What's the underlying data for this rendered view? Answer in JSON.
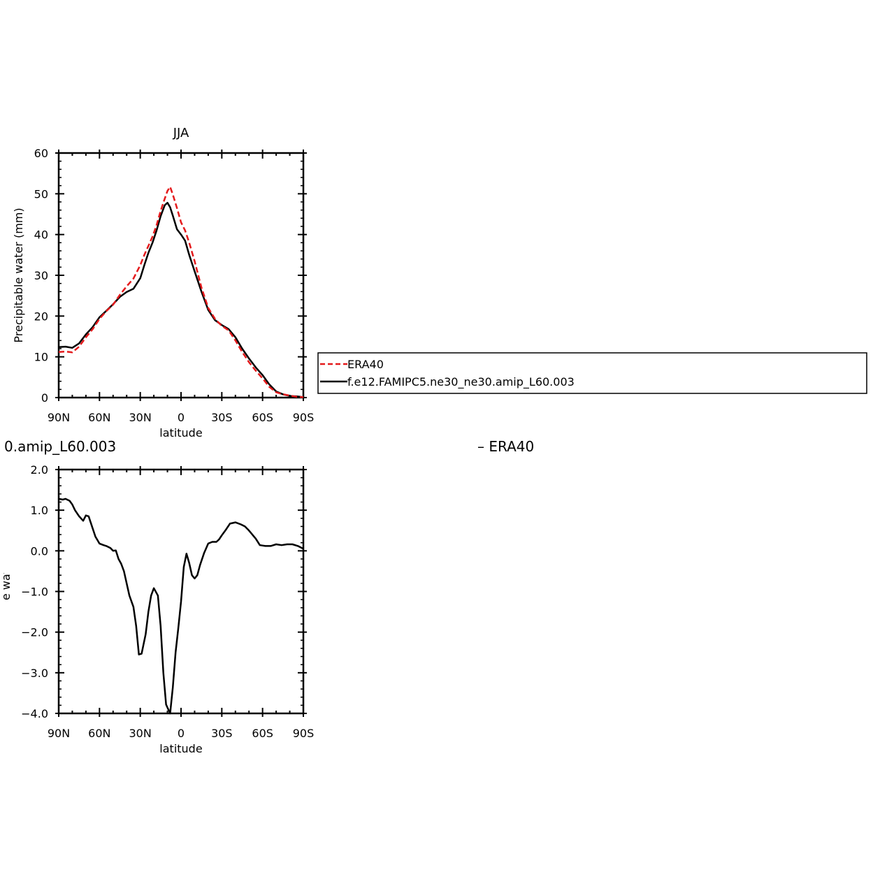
{
  "chart_data": [
    {
      "type": "line",
      "title": "JJA",
      "xlabel": "latitude",
      "ylabel": "Precipitable water (mm)",
      "xlim": [
        90,
        -90
      ],
      "ylim": [
        0,
        60
      ],
      "x_ticks": [
        {
          "value": 90,
          "label": "90N"
        },
        {
          "value": 60,
          "label": "60N"
        },
        {
          "value": 30,
          "label": "30N"
        },
        {
          "value": 0,
          "label": "0"
        },
        {
          "value": -30,
          "label": "30S"
        },
        {
          "value": -60,
          "label": "60S"
        },
        {
          "value": -90,
          "label": "90S"
        }
      ],
      "y_ticks": [
        {
          "value": 0,
          "label": "0"
        },
        {
          "value": 10,
          "label": "10"
        },
        {
          "value": 20,
          "label": "20"
        },
        {
          "value": 30,
          "label": "30"
        },
        {
          "value": 40,
          "label": "40"
        },
        {
          "value": 50,
          "label": "50"
        },
        {
          "value": 60,
          "label": "60"
        }
      ],
      "legend": "right",
      "series": [
        {
          "name": "ERA40",
          "color": "#e41a1c",
          "dash": "dashed",
          "x": [
            90,
            85,
            80,
            75,
            70,
            65,
            60,
            55,
            50,
            45,
            40,
            35,
            30,
            27,
            24,
            21,
            18,
            15,
            12,
            10,
            8,
            6,
            3,
            0,
            -3,
            -6,
            -10,
            -15,
            -20,
            -25,
            -30,
            -35,
            -40,
            -45,
            -50,
            -55,
            -60,
            -65,
            -70,
            -75,
            -80,
            -85,
            -90
          ],
          "y": [
            11.2,
            11.3,
            11.1,
            12.5,
            14.8,
            16.8,
            19.3,
            21.2,
            22.8,
            25.2,
            27.3,
            29.2,
            32.5,
            35.0,
            37.2,
            39.5,
            42.3,
            45.8,
            48.8,
            50.7,
            51.7,
            49.8,
            46.5,
            43.0,
            41.0,
            38.0,
            33.5,
            27.0,
            22.0,
            19.3,
            17.6,
            16.5,
            14.0,
            11.2,
            8.7,
            6.6,
            4.7,
            2.6,
            1.3,
            0.8,
            0.5,
            0.2,
            0.1
          ]
        },
        {
          "name": "f.e12.FAMIPC5.ne30_ne30.amip_L60.003",
          "color": "#000000",
          "dash": "solid",
          "x": [
            90,
            85,
            80,
            75,
            70,
            65,
            60,
            55,
            50,
            45,
            40,
            35,
            30,
            27,
            24,
            21,
            18,
            15,
            12,
            10,
            8,
            6,
            3,
            0,
            -3,
            -6,
            -10,
            -15,
            -20,
            -25,
            -30,
            -35,
            -40,
            -45,
            -50,
            -55,
            -60,
            -65,
            -70,
            -75,
            -80,
            -85,
            -90
          ],
          "y": [
            12.4,
            12.5,
            12.2,
            13.3,
            15.5,
            17.3,
            19.7,
            21.3,
            22.9,
            24.7,
            25.9,
            26.7,
            29.3,
            32.5,
            35.5,
            38.0,
            41.0,
            44.5,
            47.2,
            47.8,
            46.7,
            44.6,
            41.3,
            40.0,
            38.5,
            35.0,
            31.0,
            26.0,
            21.5,
            19.0,
            17.8,
            16.8,
            14.8,
            12.0,
            9.6,
            7.4,
            5.5,
            3.2,
            1.5,
            0.8,
            0.4,
            0.3,
            0.1
          ]
        }
      ]
    },
    {
      "type": "line",
      "title": "0.amip_L60.003",
      "title_right": "– ERA40",
      "xlabel": "latitude",
      "ylabel": "Precipitable water (mm)",
      "xlim": [
        90,
        -90
      ],
      "ylim": [
        -4.0,
        2.0
      ],
      "x_ticks": [
        {
          "value": 90,
          "label": "90N"
        },
        {
          "value": 60,
          "label": "60N"
        },
        {
          "value": 30,
          "label": "30N"
        },
        {
          "value": 0,
          "label": "0"
        },
        {
          "value": -30,
          "label": "30S"
        },
        {
          "value": -60,
          "label": "60S"
        },
        {
          "value": -90,
          "label": "90S"
        }
      ],
      "y_ticks": [
        {
          "value": -4.0,
          "label": "−4.0"
        },
        {
          "value": -3.0,
          "label": "−3.0"
        },
        {
          "value": -2.0,
          "label": "−2.0"
        },
        {
          "value": -1.0,
          "label": "−1.0"
        },
        {
          "value": 0.0,
          "label": "0.0"
        },
        {
          "value": 1.0,
          "label": "1.0"
        },
        {
          "value": 2.0,
          "label": "2.0"
        }
      ],
      "series": [
        {
          "color": "#000000",
          "dash": "solid",
          "x": [
            90,
            87,
            85,
            82,
            80,
            78,
            75,
            72,
            70,
            68,
            65,
            63,
            60,
            57,
            55,
            52,
            50,
            48,
            46,
            44,
            42,
            40,
            38,
            35,
            33,
            31,
            29,
            26,
            24,
            22,
            20,
            17,
            15,
            13,
            11,
            9,
            8,
            6,
            4,
            2,
            0,
            -2,
            -4,
            -6,
            -8,
            -10,
            -12,
            -14,
            -17,
            -20,
            -23,
            -26,
            -28,
            -30,
            -33,
            -36,
            -40,
            -44,
            -47,
            -50,
            -55,
            -58,
            -62,
            -66,
            -70,
            -74,
            -78,
            -82,
            -86,
            -90
          ],
          "y": [
            1.28,
            1.26,
            1.28,
            1.23,
            1.14,
            1.0,
            0.85,
            0.74,
            0.87,
            0.85,
            0.55,
            0.35,
            0.18,
            0.14,
            0.12,
            0.07,
            0.0,
            0.01,
            -0.2,
            -0.32,
            -0.5,
            -0.8,
            -1.1,
            -1.38,
            -1.85,
            -2.55,
            -2.53,
            -2.05,
            -1.5,
            -1.1,
            -0.92,
            -1.1,
            -1.85,
            -3.0,
            -3.78,
            -3.93,
            -4.0,
            -3.35,
            -2.5,
            -1.9,
            -1.25,
            -0.4,
            -0.07,
            -0.3,
            -0.6,
            -0.68,
            -0.6,
            -0.35,
            -0.05,
            0.18,
            0.22,
            0.22,
            0.28,
            0.38,
            0.52,
            0.67,
            0.7,
            0.65,
            0.6,
            0.5,
            0.3,
            0.14,
            0.12,
            0.12,
            0.16,
            0.14,
            0.16,
            0.16,
            0.12,
            0.05
          ]
        }
      ]
    }
  ]
}
